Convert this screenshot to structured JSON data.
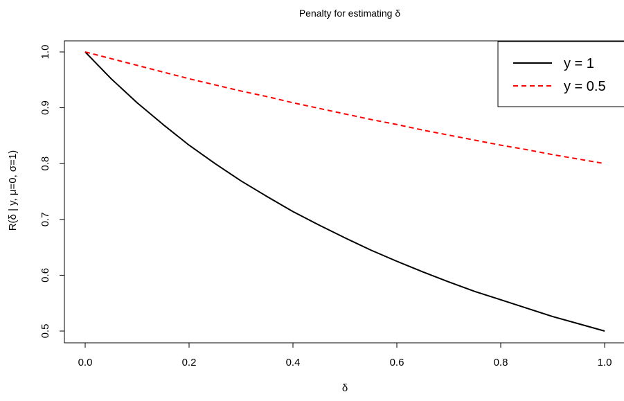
{
  "chart_data": {
    "type": "line",
    "title": "Penalty for estimating δ",
    "xlabel": "δ",
    "ylabel": "R(δ | y, μ=0, σ=1)",
    "xlim": [
      0.0,
      1.0
    ],
    "ylim": [
      0.5,
      1.0
    ],
    "x_ticks": [
      "0.0",
      "0.2",
      "0.4",
      "0.6",
      "0.8",
      "1.0"
    ],
    "y_ticks": [
      "0.5",
      "0.6",
      "0.7",
      "0.8",
      "0.9",
      "1.0"
    ],
    "grid": false,
    "legend_position": "top-right",
    "series": [
      {
        "name": "y = 1",
        "color": "#000000",
        "style": "solid",
        "x": [
          0.0,
          0.05,
          0.1,
          0.15,
          0.2,
          0.25,
          0.3,
          0.35,
          0.4,
          0.45,
          0.5,
          0.55,
          0.6,
          0.65,
          0.7,
          0.75,
          0.8,
          0.85,
          0.9,
          0.95,
          1.0
        ],
        "y": [
          1.0,
          0.952,
          0.909,
          0.87,
          0.833,
          0.8,
          0.769,
          0.741,
          0.714,
          0.69,
          0.667,
          0.645,
          0.625,
          0.606,
          0.588,
          0.571,
          0.556,
          0.541,
          0.526,
          0.513,
          0.5
        ]
      },
      {
        "name": "y = 0.5",
        "color": "#ff0000",
        "style": "dashed",
        "x": [
          0.0,
          0.05,
          0.1,
          0.15,
          0.2,
          0.25,
          0.3,
          0.35,
          0.4,
          0.45,
          0.5,
          0.55,
          0.6,
          0.65,
          0.7,
          0.75,
          0.8,
          0.85,
          0.9,
          0.95,
          1.0
        ],
        "y": [
          1.0,
          0.988,
          0.976,
          0.964,
          0.952,
          0.941,
          0.93,
          0.92,
          0.909,
          0.899,
          0.889,
          0.879,
          0.87,
          0.86,
          0.851,
          0.842,
          0.833,
          0.825,
          0.816,
          0.808,
          0.8
        ]
      }
    ]
  }
}
